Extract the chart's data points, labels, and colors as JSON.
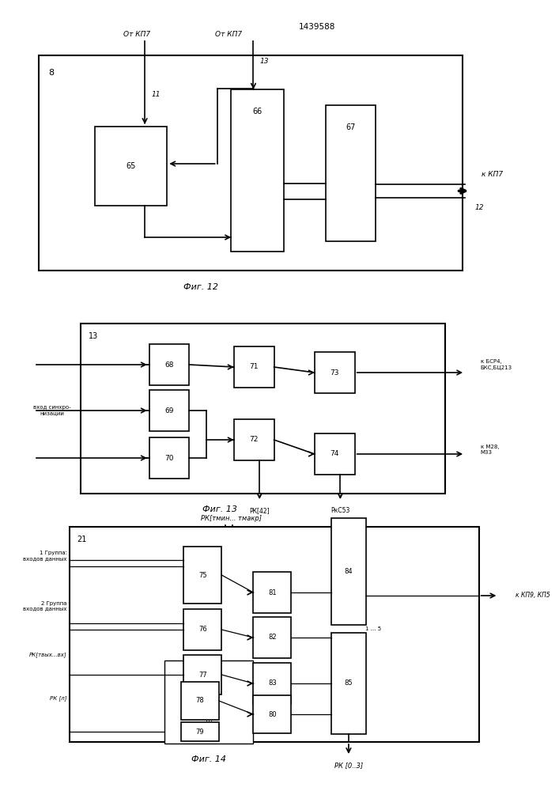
{
  "patent_number": "1439588",
  "bg_color": "#ffffff",
  "line_color": "#000000",
  "fig12_caption": "Фиг. 12",
  "fig13_caption": "Фиг. 13",
  "fig14_caption": "Фиг. 14",
  "label_8": "8",
  "label_13": "13",
  "label_21": "21",
  "ot_kp7": "От КП7",
  "k_kp7": "к КП7",
  "vhod_sinhr": "вход синхро-\nнизации",
  "k_bsr4": "к БСР4,\nБКС,БЦ213",
  "k_m28": "к М28,\nМ33",
  "rk42": "РК[42]",
  "rks53": "РкС53",
  "rk_tmin": "РК[тмин... тмакр]",
  "gr1": "1 Группа:\nвходов данных",
  "gr2": "2 Группа\nвходов данных",
  "rk_tvyh": "РК[твых...вх]",
  "rk_l": "РК [л]",
  "k_kp9": "к КП9, КП5",
  "rk_03": "РК [0..3]",
  "dots": "...",
  "one_5": "1 ... 5"
}
